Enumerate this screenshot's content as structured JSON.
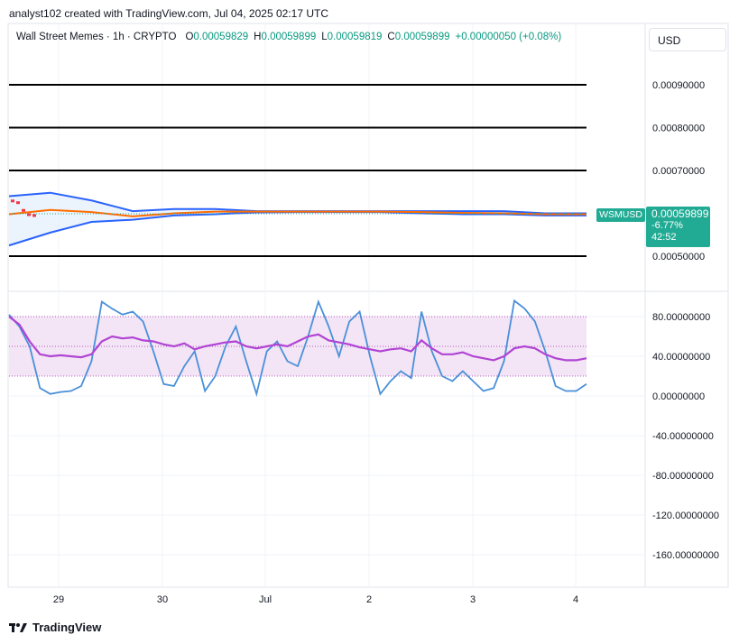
{
  "header": {
    "text": "analyst102 created with TradingView.com, Jul 04, 2025 02:17 UTC"
  },
  "legend": {
    "symbol": "Wall Street Memes · 1h · CRYPTO",
    "o_label": "O",
    "o_value": "0.00059829",
    "h_label": "H",
    "h_value": "0.00059899",
    "l_label": "L",
    "l_value": "0.00059819",
    "c_label": "C",
    "c_value": "0.00059899",
    "change": "+0.00000050 (+0.08%)"
  },
  "currency": "USD",
  "price_tag": {
    "symbol": "WSMUSD",
    "price": "0.00059899",
    "change_pct": "-6.77%",
    "countdown": "42:52"
  },
  "footer": {
    "brand": "TradingView"
  },
  "colors": {
    "up": "#089981",
    "tag_bg": "#22ab94",
    "bb_band": "#2962ff",
    "bb_basis": "#ff6d00",
    "stoch_k": "#4a90d9",
    "rsi_line": "#b044d4",
    "band_fill": "#f3e5f5"
  },
  "chart_data": [
    {
      "type": "line",
      "name_hint": "price-panel",
      "y_ticks": [
        "0.00090000",
        "0.00080000",
        "0.00070000",
        "0.00050000"
      ],
      "y_tick_values": [
        0.0009,
        0.0008,
        0.0007,
        0.0005
      ],
      "horizontal_levels": [
        0.0009,
        0.0008,
        0.0007,
        0.0005
      ],
      "ylim": [
        0.00045,
        0.00098
      ],
      "x_ticks": [
        "29",
        "30",
        "Jul",
        "2",
        "3",
        "4"
      ],
      "last_price": 0.00059899,
      "bb_upper": [
        0.00064,
        0.000648,
        0.00063,
        0.000605,
        0.00061,
        0.00061,
        0.000605,
        0.000605,
        0.000605,
        0.000605,
        0.000605,
        0.000605,
        0.000605,
        0.0006,
        0.0006
      ],
      "bb_lower": [
        0.000525,
        0.000555,
        0.00058,
        0.000585,
        0.000595,
        0.000598,
        0.000602,
        0.000603,
        0.000603,
        0.000603,
        0.0006,
        0.000598,
        0.000598,
        0.000595,
        0.000595
      ],
      "bb_basis": [
        0.000598,
        0.000608,
        0.000603,
        0.000593,
        0.0006,
        0.000604,
        0.000604,
        0.000604,
        0.000604,
        0.000604,
        0.000603,
        0.000601,
        0.0006,
        0.000598,
        0.000598
      ]
    },
    {
      "type": "line",
      "name_hint": "oscillator-panel",
      "y_ticks": [
        "80.00000000",
        "40.00000000",
        "0.00000000",
        "-40.00000000",
        "-80.00000000",
        "-120.00000000",
        "-160.00000000"
      ],
      "y_tick_values": [
        80,
        40,
        0,
        -40,
        -80,
        -120,
        -160
      ],
      "ylim": [
        -192,
        105
      ],
      "band": [
        20,
        80
      ],
      "mid_line": 50,
      "series": [
        {
          "name": "",
          "values": [
            82,
            70,
            50,
            8,
            2,
            4,
            5,
            10,
            35,
            95,
            88,
            82,
            85,
            75,
            45,
            12,
            10,
            30,
            45,
            5,
            20,
            50,
            70,
            35,
            2,
            45,
            55,
            35,
            30,
            60,
            95,
            70,
            40,
            75,
            85,
            40,
            2,
            15,
            25,
            18,
            85,
            45,
            20,
            15,
            25,
            15,
            5,
            8,
            35,
            96,
            88,
            75,
            45,
            10,
            5,
            5,
            12
          ]
        },
        {
          "name": "",
          "values": [
            80,
            72,
            55,
            42,
            40,
            41,
            40,
            39,
            42,
            55,
            60,
            58,
            59,
            56,
            55,
            52,
            50,
            53,
            47,
            50,
            52,
            54,
            55,
            50,
            48,
            50,
            52,
            50,
            55,
            60,
            62,
            56,
            54,
            52,
            49,
            47,
            45,
            47,
            48,
            45,
            56,
            48,
            42,
            42,
            44,
            40,
            38,
            36,
            40,
            48,
            50,
            48,
            42,
            38,
            36,
            36,
            38
          ]
        }
      ]
    }
  ]
}
